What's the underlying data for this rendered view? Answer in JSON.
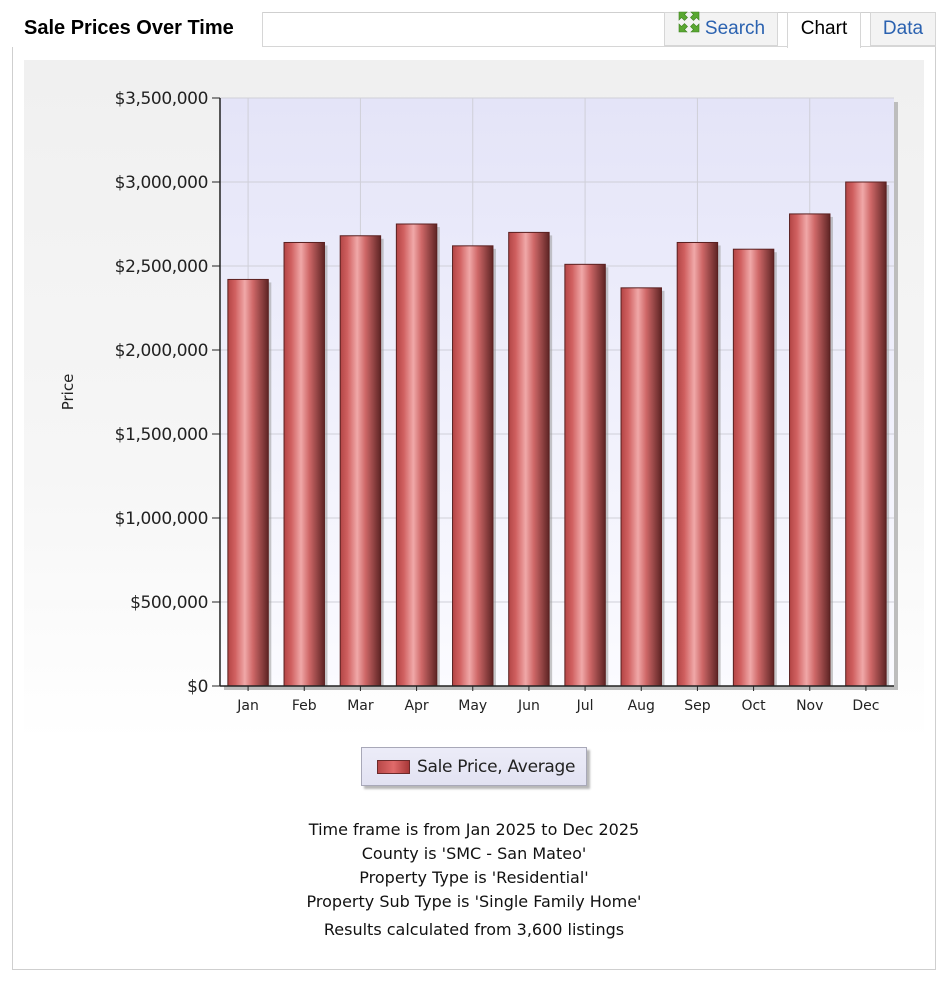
{
  "header": {
    "title": "Sale Prices Over Time",
    "tabs": [
      {
        "id": "search",
        "label": "Search",
        "icon": "expand-arrows-icon"
      },
      {
        "id": "chart",
        "label": "Chart",
        "active": true
      },
      {
        "id": "data",
        "label": "Data"
      }
    ]
  },
  "chart_data": {
    "type": "bar",
    "title": "",
    "xlabel": "",
    "ylabel": "Price",
    "ylim": [
      0,
      3500000
    ],
    "yticks": [
      0,
      500000,
      1000000,
      1500000,
      2000000,
      2500000,
      3000000,
      3500000
    ],
    "ytick_labels": [
      "$0",
      "$500,000",
      "$1,000,000",
      "$1,500,000",
      "$2,000,000",
      "$2,500,000",
      "$3,000,000",
      "$3,500,000"
    ],
    "categories": [
      "Jan",
      "Feb",
      "Mar",
      "Apr",
      "May",
      "Jun",
      "Jul",
      "Aug",
      "Sep",
      "Oct",
      "Nov",
      "Dec"
    ],
    "series": [
      {
        "name": "Sale Price, Average",
        "color": "#c85252",
        "values": [
          2420000,
          2640000,
          2680000,
          2750000,
          2620000,
          2700000,
          2510000,
          2370000,
          2640000,
          2600000,
          2810000,
          3000000
        ]
      }
    ],
    "grid": true,
    "legend_position": "bottom"
  },
  "summary": {
    "lines": [
      "Time frame is from Jan 2025 to Dec 2025",
      "County is 'SMC - San Mateo'",
      "Property Type is 'Residential'",
      "Property Sub Type is 'Single Family Home'"
    ],
    "results": "Results calculated from 3,600 listings"
  }
}
